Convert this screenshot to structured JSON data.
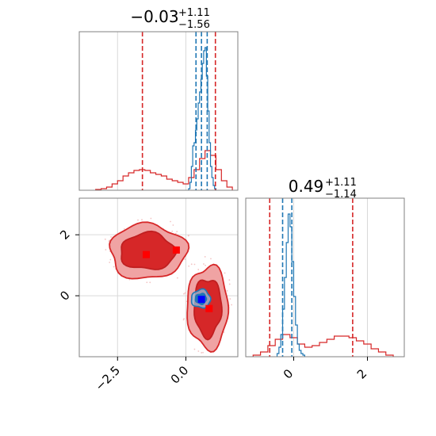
{
  "chart_data": [
    {
      "panel": "marginal-x",
      "type": "histogram",
      "title_main": "−0.03",
      "title_sup": "+1.11",
      "title_sub": "−1.56",
      "xlim": [
        -3.9,
        1.9
      ],
      "ylim": [
        0,
        1.0
      ],
      "series": [
        {
          "color": "#d62728",
          "bin_edges": [
            -3.3,
            -3.1,
            -2.9,
            -2.7,
            -2.5,
            -2.3,
            -2.1,
            -1.9,
            -1.7,
            -1.5,
            -1.3,
            -1.1,
            -0.9,
            -0.7,
            -0.5,
            -0.3,
            -0.1,
            0.1,
            0.3,
            0.5,
            0.7,
            0.9,
            1.1,
            1.3,
            1.5,
            1.7
          ],
          "counts": [
            0.005,
            0.01,
            0.02,
            0.04,
            0.06,
            0.09,
            0.11,
            0.125,
            0.13,
            0.125,
            0.11,
            0.1,
            0.09,
            0.07,
            0.06,
            0.05,
            0.04,
            0.08,
            0.13,
            0.2,
            0.25,
            0.22,
            0.13,
            0.06,
            0.02
          ]
        },
        {
          "color": "#1f77b4",
          "bin_edges": [
            0.1,
            0.15,
            0.2,
            0.25,
            0.3,
            0.35,
            0.4,
            0.45,
            0.5,
            0.55,
            0.6,
            0.65,
            0.7,
            0.75,
            0.8,
            0.85,
            0.9,
            0.95,
            1.0,
            1.05,
            1.1
          ],
          "counts": [
            0.01,
            0.05,
            0.15,
            0.28,
            0.3,
            0.38,
            0.45,
            0.55,
            0.62,
            0.7,
            0.8,
            0.88,
            0.9,
            0.72,
            0.5,
            0.3,
            0.15,
            0.08,
            0.03,
            0.01
          ]
        }
      ],
      "vlines": [
        {
          "x": -1.59,
          "color": "#d62728"
        },
        {
          "x": 1.08,
          "color": "#d62728"
        },
        {
          "x": 0.37,
          "color": "#1f77b4"
        },
        {
          "x": 0.57,
          "color": "#1f77b4"
        },
        {
          "x": 0.78,
          "color": "#1f77b4"
        }
      ],
      "grid": true
    },
    {
      "panel": "joint",
      "type": "contour",
      "xlim": [
        -3.9,
        1.9
      ],
      "ylim": [
        -2.0,
        3.2
      ],
      "xticks": [
        -2.5,
        0.0
      ],
      "xtick_labels": [
        "−2.5",
        "0.0"
      ],
      "yticks": [
        0,
        2
      ],
      "ytick_labels": [
        "0",
        "2"
      ],
      "grid": true,
      "red_regions": [
        {
          "cx": -1.4,
          "cy": 1.45,
          "levels": [
            {
              "r": [
                1.4,
                0.9
              ],
              "fill": "#f0a3a3",
              "stroke": "#d62728"
            },
            {
              "r": [
                1.0,
                0.6
              ],
              "fill": "#d62728",
              "stroke": "#c01f20"
            }
          ]
        },
        {
          "cx": 0.8,
          "cy": -0.38,
          "levels": [
            {
              "r": [
                0.75,
                1.35
              ],
              "fill": "#f0a3a3",
              "stroke": "#d62728"
            },
            {
              "r": [
                0.5,
                0.95
              ],
              "fill": "#d62728",
              "stroke": "#c01f20"
            }
          ]
        }
      ],
      "blue_region": {
        "cx": 0.55,
        "cy": -0.1,
        "r": [
          0.35,
          0.3
        ]
      },
      "red_markers": [
        {
          "x": -1.45,
          "y": 1.35
        },
        {
          "x": -0.35,
          "y": 1.5
        },
        {
          "x": 0.85,
          "y": -0.42
        }
      ],
      "blue_marker": {
        "x": 0.57,
        "y": -0.12
      }
    },
    {
      "panel": "marginal-y",
      "type": "histogram",
      "title_main": "0.49",
      "title_sup": "+1.11",
      "title_sub": "−1.14",
      "xlim": [
        -1.3,
        3.0
      ],
      "ylim": [
        0,
        1.0
      ],
      "xticks": [
        0,
        2
      ],
      "xtick_labels": [
        "0",
        "2"
      ],
      "series": [
        {
          "color": "#d62728",
          "bin_edges": [
            -1.1,
            -0.9,
            -0.7,
            -0.5,
            -0.3,
            -0.1,
            0.1,
            0.3,
            0.5,
            0.7,
            0.9,
            1.1,
            1.3,
            1.5,
            1.7,
            1.9,
            2.1,
            2.3,
            2.5,
            2.7
          ],
          "counts": [
            0.01,
            0.03,
            0.07,
            0.11,
            0.14,
            0.12,
            0.08,
            0.06,
            0.07,
            0.09,
            0.11,
            0.13,
            0.13,
            0.12,
            0.1,
            0.08,
            0.05,
            0.03,
            0.01
          ]
        },
        {
          "color": "#1f77b4",
          "bin_edges": [
            -0.45,
            -0.4,
            -0.35,
            -0.3,
            -0.25,
            -0.2,
            -0.15,
            -0.1,
            -0.05,
            0.0,
            0.05,
            0.1,
            0.15,
            0.2,
            0.25,
            0.3
          ],
          "counts": [
            0.02,
            0.06,
            0.14,
            0.3,
            0.5,
            0.72,
            0.9,
            0.82,
            0.6,
            0.38,
            0.2,
            0.08,
            0.04,
            0.02,
            0.01
          ]
        }
      ],
      "vlines": [
        {
          "x": -0.65,
          "color": "#d62728"
        },
        {
          "x": 1.6,
          "color": "#d62728"
        },
        {
          "x": -0.3,
          "color": "#1f77b4"
        },
        {
          "x": -0.05,
          "color": "#1f77b4"
        }
      ],
      "grid": true
    }
  ]
}
